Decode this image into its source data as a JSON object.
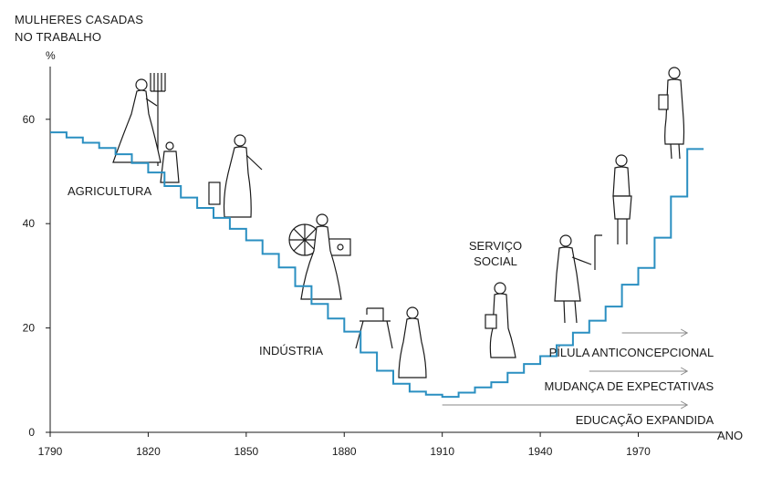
{
  "chart_data": {
    "type": "line",
    "step": true,
    "title_lines": [
      "MULHERES CASADAS",
      "NO TRABALHO"
    ],
    "ylabel": "%",
    "xlabel": "ANO",
    "xlim": [
      1790,
      1990
    ],
    "ylim": [
      0,
      70
    ],
    "x_ticks": [
      1790,
      1820,
      1850,
      1880,
      1910,
      1940,
      1970
    ],
    "y_ticks": [
      0,
      20,
      40,
      60
    ],
    "series": [
      {
        "name": "Mulheres casadas no trabalho (%)",
        "color": "#2a8fc1",
        "x": [
          1790,
          1795,
          1800,
          1805,
          1810,
          1815,
          1820,
          1825,
          1830,
          1835,
          1840,
          1845,
          1850,
          1855,
          1860,
          1865,
          1870,
          1875,
          1880,
          1885,
          1890,
          1895,
          1900,
          1905,
          1910,
          1915,
          1920,
          1925,
          1930,
          1935,
          1940,
          1945,
          1950,
          1955,
          1960,
          1965,
          1970,
          1975,
          1980,
          1985
        ],
        "y": [
          57.5,
          56.5,
          55.5,
          54.5,
          53.3,
          51.6,
          49.8,
          47.2,
          45.0,
          43.0,
          41.1,
          39.0,
          36.8,
          34.2,
          31.6,
          28.0,
          24.6,
          21.8,
          19.3,
          15.3,
          11.8,
          9.3,
          7.8,
          7.2,
          6.8,
          7.6,
          8.6,
          9.6,
          11.4,
          13.1,
          14.6,
          16.7,
          19.1,
          21.4,
          24.1,
          28.3,
          31.5,
          37.3,
          45.2,
          54.3
        ]
      }
    ],
    "annotations": [
      {
        "text": "AGRICULTURA"
      },
      {
        "text": "INDÚSTRIA"
      },
      {
        "text": "SERVIÇO"
      },
      {
        "text": "SOCIAL"
      }
    ],
    "factors": [
      {
        "label": "PÍLULA ANTICONCEPCIONAL",
        "from_year": 1965,
        "to_year": 1985
      },
      {
        "label": "MUDANÇA DE EXPECTATIVAS",
        "from_year": 1955,
        "to_year": 1985
      },
      {
        "label": "EDUCAÇÃO EXPANDIDA",
        "from_year": 1910,
        "to_year": 1985
      }
    ]
  }
}
